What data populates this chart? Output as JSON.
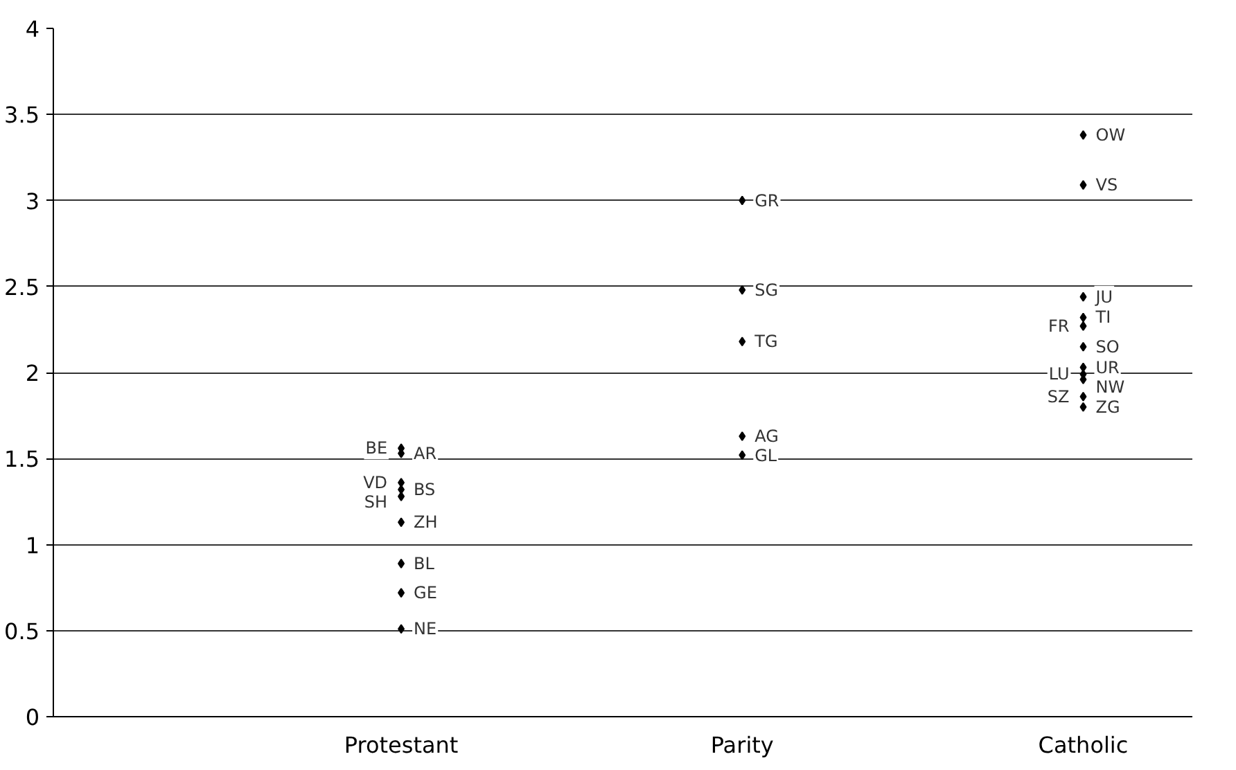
{
  "chart_data": {
    "type": "scatter",
    "categories": [
      "Protestant",
      "Parity",
      "Catholic"
    ],
    "series": [
      {
        "color": "#000000",
        "x": [
          "Protestant",
          "Protestant",
          "Protestant",
          "Protestant",
          "Protestant",
          "Protestant",
          "Protestant",
          "Protestant",
          "Protestant",
          "Parity",
          "Parity",
          "Parity",
          "Parity",
          "Parity",
          "Catholic",
          "Catholic",
          "Catholic",
          "Catholic",
          "Catholic",
          "Catholic",
          "Catholic",
          "Catholic",
          "Catholic",
          "Catholic",
          "Catholic"
        ],
        "values": [
          1.53,
          1.56,
          1.32,
          1.36,
          1.28,
          1.13,
          0.89,
          0.72,
          0.51,
          3.0,
          2.48,
          2.18,
          1.63,
          1.52,
          3.38,
          3.09,
          2.44,
          2.32,
          2.27,
          2.15,
          2.03,
          1.99,
          1.96,
          1.8,
          1.86
        ]
      }
    ],
    "annotations": [
      {
        "text": "AR",
        "x": "Protestant",
        "y": 1.53
      },
      {
        "text": "BE",
        "x": "Protestant",
        "y": 1.56
      },
      {
        "text": "BS",
        "x": "Protestant",
        "y": 1.32
      },
      {
        "text": "VD",
        "x": "Protestant",
        "y": 1.36
      },
      {
        "text": "SH",
        "x": "Protestant",
        "y": 1.28
      },
      {
        "text": "ZH",
        "x": "Protestant",
        "y": 1.13
      },
      {
        "text": "BL",
        "x": "Protestant",
        "y": 0.89
      },
      {
        "text": "GE",
        "x": "Protestant",
        "y": 0.72
      },
      {
        "text": "NE",
        "x": "Protestant",
        "y": 0.51
      },
      {
        "text": "GR",
        "x": "Parity",
        "y": 3.0
      },
      {
        "text": "SG",
        "x": "Parity",
        "y": 2.48
      },
      {
        "text": "TG",
        "x": "Parity",
        "y": 2.18
      },
      {
        "text": "AG",
        "x": "Parity",
        "y": 1.63
      },
      {
        "text": "GL",
        "x": "Parity",
        "y": 1.52
      },
      {
        "text": "OW",
        "x": "Catholic",
        "y": 3.38
      },
      {
        "text": "VS",
        "x": "Catholic",
        "y": 3.09
      },
      {
        "text": "JU",
        "x": "Catholic",
        "y": 2.44
      },
      {
        "text": "TI",
        "x": "Catholic",
        "y": 2.32
      },
      {
        "text": "FR",
        "x": "Catholic",
        "y": 2.27
      },
      {
        "text": "SO",
        "x": "Catholic",
        "y": 2.15
      },
      {
        "text": "UR",
        "x": "Catholic",
        "y": 2.03
      },
      {
        "text": "LU",
        "x": "Catholic",
        "y": 1.99
      },
      {
        "text": "NW",
        "x": "Catholic",
        "y": 1.96
      },
      {
        "text": "ZG",
        "x": "Catholic",
        "y": 1.8
      },
      {
        "text": "SZ",
        "x": "Catholic",
        "y": 1.86
      }
    ],
    "ylim": [
      0,
      4
    ],
    "yticks": [
      0,
      0.5,
      1,
      1.5,
      2,
      2.5,
      3,
      3.5,
      4
    ],
    "grid": "y",
    "marker": "diamond"
  }
}
